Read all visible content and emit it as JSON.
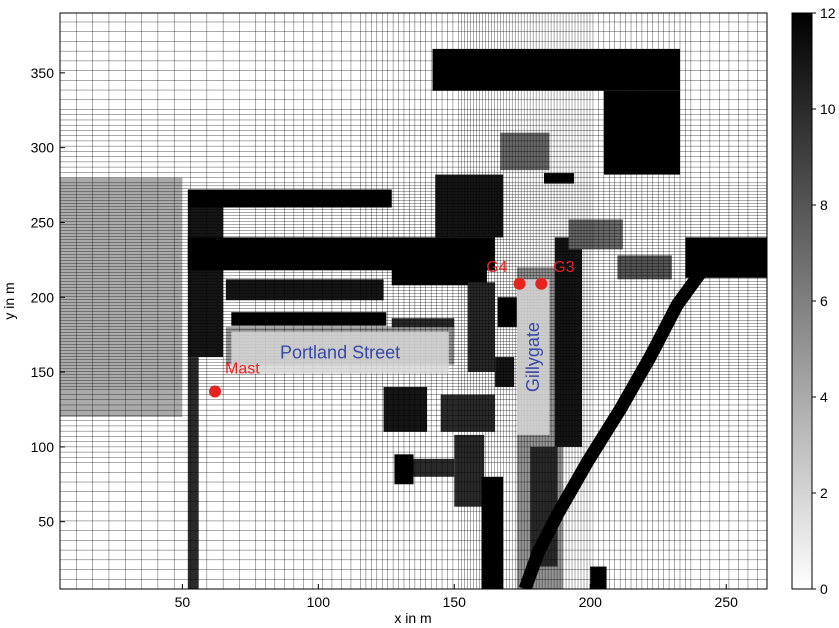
{
  "chart_data": {
    "type": "heatmap",
    "title": "",
    "xlabel": "x in m",
    "ylabel": "y in m",
    "xlim": [
      5,
      265
    ],
    "ylim": [
      5,
      390
    ],
    "xticks": [
      50,
      100,
      150,
      200,
      250
    ],
    "yticks": [
      50,
      100,
      150,
      200,
      250,
      300,
      350
    ],
    "colorbar": {
      "min": 0,
      "max": 12,
      "ticks": [
        0,
        2,
        4,
        6,
        8,
        10,
        12
      ],
      "colormap": "gray-reversed"
    },
    "grid": true,
    "cells": [
      {
        "x": [
          142,
          233
        ],
        "y": [
          338,
          366
        ],
        "v": 12
      },
      {
        "x": [
          205,
          233
        ],
        "y": [
          282,
          338
        ],
        "v": 12
      },
      {
        "x": [
          167,
          185
        ],
        "y": [
          285,
          310
        ],
        "v": 7
      },
      {
        "x": [
          183,
          194
        ],
        "y": [
          276,
          283
        ],
        "v": 12
      },
      {
        "x": [
          52,
          127
        ],
        "y": [
          260,
          272
        ],
        "v": 12
      },
      {
        "x": [
          52,
          65
        ],
        "y": [
          160,
          260
        ],
        "v": 11
      },
      {
        "x": [
          52,
          165
        ],
        "y": [
          218,
          240
        ],
        "v": 12
      },
      {
        "x": [
          66,
          124
        ],
        "y": [
          198,
          212
        ],
        "v": 11
      },
      {
        "x": [
          68,
          125
        ],
        "y": [
          181,
          190
        ],
        "v": 12
      },
      {
        "x": [
          143,
          168
        ],
        "y": [
          240,
          282
        ],
        "v": 11
      },
      {
        "x": [
          127,
          162
        ],
        "y": [
          208,
          230
        ],
        "v": 12
      },
      {
        "x": [
          52,
          56
        ],
        "y": [
          5,
          160
        ],
        "v": 10
      },
      {
        "x": [
          155,
          165
        ],
        "y": [
          150,
          210
        ],
        "v": 10
      },
      {
        "x": [
          166,
          175
        ],
        "y": [
          180,
          200
        ],
        "v": 12
      },
      {
        "x": [
          127,
          150
        ],
        "y": [
          172,
          186
        ],
        "v": 10
      },
      {
        "x": [
          124,
          140
        ],
        "y": [
          110,
          140
        ],
        "v": 11
      },
      {
        "x": [
          145,
          165
        ],
        "y": [
          110,
          135
        ],
        "v": 10
      },
      {
        "x": [
          150,
          161
        ],
        "y": [
          60,
          108
        ],
        "v": 10
      },
      {
        "x": [
          160,
          168
        ],
        "y": [
          5,
          80
        ],
        "v": 12
      },
      {
        "x": [
          165,
          172
        ],
        "y": [
          140,
          160
        ],
        "v": 11
      },
      {
        "x": [
          173,
          190
        ],
        "y": [
          5,
          220
        ],
        "v": 5
      },
      {
        "x": [
          187,
          197
        ],
        "y": [
          100,
          240
        ],
        "v": 11
      },
      {
        "x": [
          178,
          188
        ],
        "y": [
          20,
          100
        ],
        "v": 10
      },
      {
        "x": [
          200,
          206
        ],
        "y": [
          5,
          20
        ],
        "v": 12
      },
      {
        "x": [
          235,
          268
        ],
        "y": [
          213,
          240
        ],
        "v": 12
      },
      {
        "x": [
          192,
          212
        ],
        "y": [
          232,
          252
        ],
        "v": 7
      },
      {
        "x": [
          210,
          230
        ],
        "y": [
          212,
          228
        ],
        "v": 8
      },
      {
        "x": [
          128,
          150
        ],
        "y": [
          80,
          92
        ],
        "v": 10
      },
      {
        "x": [
          128,
          135
        ],
        "y": [
          75,
          95
        ],
        "v": 12
      },
      {
        "x": [
          5,
          50
        ],
        "y": [
          120,
          280
        ],
        "v": 4
      },
      {
        "x": [
          66,
          150
        ],
        "y": [
          155,
          180
        ],
        "v": 5
      }
    ],
    "diagonal_band": [
      [
        244,
        225
      ],
      [
        232,
        195
      ],
      [
        222,
        160
      ],
      [
        211,
        125
      ],
      [
        199,
        90
      ],
      [
        188,
        55
      ],
      [
        181,
        30
      ],
      [
        176,
        5
      ]
    ],
    "points": [
      {
        "label": "Mast",
        "x": 62,
        "y": 137
      },
      {
        "label": "G4",
        "x": 174,
        "y": 209
      },
      {
        "label": "G3",
        "x": 182,
        "y": 209
      }
    ],
    "street_labels": [
      {
        "text": "Portland Street",
        "x": 108,
        "y": 163
      },
      {
        "text": "Gillygate",
        "x": 179,
        "y": 160
      }
    ]
  }
}
